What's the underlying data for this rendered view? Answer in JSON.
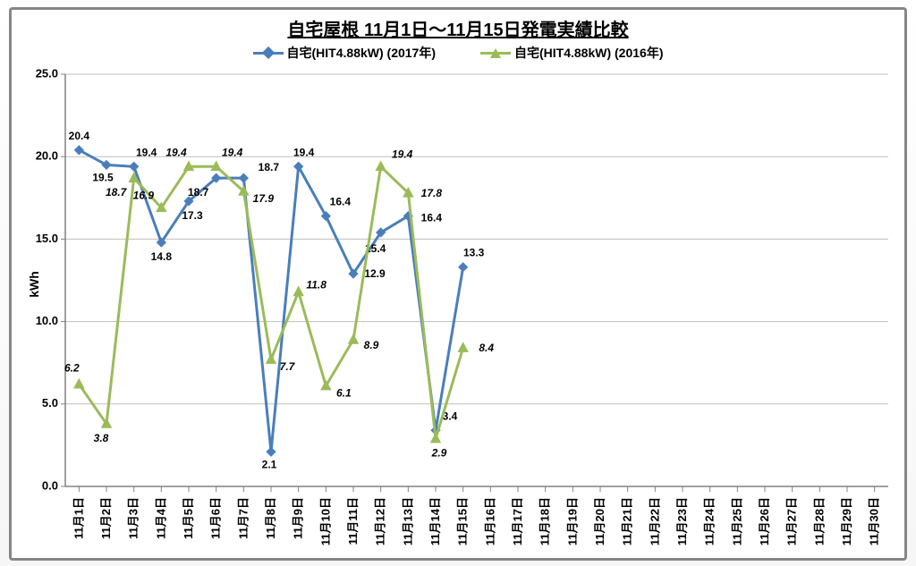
{
  "title": "自宅屋根 11月1日～11月15日発電実績比較",
  "title_fontsize": 20,
  "ylabel": "kWh",
  "background_color": "#ffffff",
  "border_color": "#868686",
  "grid_color": "#bfbfbf",
  "axis_color": "#808080",
  "ylim": [
    0.0,
    25.0
  ],
  "ytick_step": 5.0,
  "yticks": [
    "0.0",
    "5.0",
    "10.0",
    "15.0",
    "20.0",
    "25.0"
  ],
  "categories": [
    "11月1日",
    "11月2日",
    "11月3日",
    "11月4日",
    "11月5日",
    "11月6日",
    "11月7日",
    "11月8日",
    "11月9日",
    "11月10日",
    "11月11日",
    "11月12日",
    "11月13日",
    "11月14日",
    "11月15日",
    "11月16日",
    "11月17日",
    "11月18日",
    "11月19日",
    "11月20日",
    "11月21日",
    "11月22日",
    "11月23日",
    "11月24日",
    "11月25日",
    "11月26日",
    "11月27日",
    "11月28日",
    "11月29日",
    "11月30日"
  ],
  "legend": [
    {
      "label": "自宅(HIT4.88kW)  (2017年)",
      "color": "#4a7ebb",
      "marker": "diamond"
    },
    {
      "label": "自宅(HIT4.88kW)  (2016年)",
      "color": "#9bbb59",
      "marker": "triangle"
    }
  ],
  "series": [
    {
      "name": "2017",
      "color": "#4a7ebb",
      "marker": "diamond",
      "marker_size": 9,
      "line_width": 3,
      "label_style": "normal",
      "values": [
        20.4,
        19.5,
        19.4,
        14.8,
        17.3,
        18.7,
        18.7,
        2.1,
        19.4,
        16.4,
        12.9,
        15.4,
        16.4,
        3.4,
        13.3
      ],
      "label_offsets": [
        [
          0,
          -12
        ],
        [
          -4,
          18
        ],
        [
          14,
          -12
        ],
        [
          0,
          20
        ],
        [
          4,
          20
        ],
        [
          -20,
          20
        ],
        [
          28,
          -8
        ],
        [
          -2,
          18
        ],
        [
          6,
          -12
        ],
        [
          16,
          -12
        ],
        [
          24,
          4
        ],
        [
          -6,
          22
        ],
        [
          26,
          6
        ],
        [
          16,
          -12
        ],
        [
          12,
          -12
        ]
      ]
    },
    {
      "name": "2016",
      "color": "#9bbb59",
      "marker": "triangle",
      "marker_size": 10,
      "line_width": 3,
      "label_style": "italic",
      "values": [
        6.2,
        3.8,
        18.7,
        16.9,
        19.4,
        19.4,
        17.9,
        7.7,
        11.8,
        6.1,
        8.9,
        19.4,
        17.8,
        2.9,
        8.4
      ],
      "label_offsets": [
        [
          -8,
          -14
        ],
        [
          -6,
          20
        ],
        [
          -20,
          20
        ],
        [
          -20,
          -10
        ],
        [
          -14,
          -12
        ],
        [
          18,
          -12
        ],
        [
          22,
          12
        ],
        [
          18,
          12
        ],
        [
          20,
          -4
        ],
        [
          20,
          12
        ],
        [
          20,
          10
        ],
        [
          24,
          -10
        ],
        [
          26,
          4
        ],
        [
          4,
          20
        ],
        [
          26,
          4
        ]
      ]
    }
  ]
}
